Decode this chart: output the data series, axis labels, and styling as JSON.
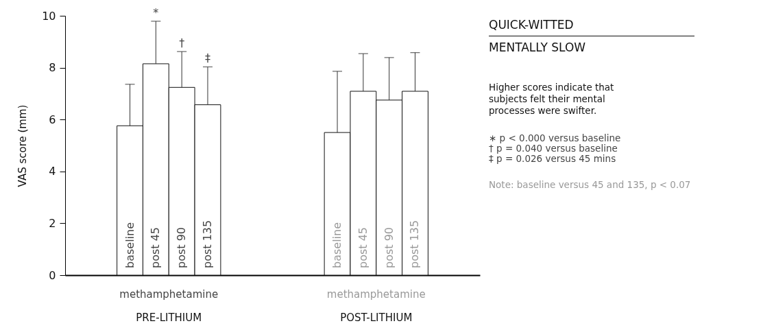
{
  "chart_data": {
    "type": "bar",
    "ylabel": "VAS score  (mm)",
    "categories": [
      "baseline",
      "post 45",
      "post 90",
      "post 135",
      "baseline",
      "post 45",
      "post 90",
      "post 135"
    ],
    "values": [
      5.76,
      8.15,
      7.24,
      6.57,
      5.5,
      7.09,
      6.75,
      7.09
    ],
    "errors": [
      [
        5.76,
        7.36
      ],
      [
        8.15,
        9.79
      ],
      [
        7.24,
        8.62
      ],
      [
        6.57,
        8.03
      ],
      [
        5.5,
        7.86
      ],
      [
        7.09,
        8.54
      ],
      [
        6.75,
        8.39
      ],
      [
        7.09,
        8.58
      ]
    ],
    "color": "#ffffff",
    "ylim": [
      0,
      10
    ],
    "yticks": [
      0,
      2,
      4,
      6,
      8,
      10
    ],
    "grid": false,
    "annotations": [
      {
        "text": "*",
        "x": "post 45",
        "y": 9.79
      },
      {
        "text": "†",
        "x": "post 90",
        "y": 8.62
      },
      {
        "text": "‡",
        "x": "post 135",
        "y": 8.03
      },
      "methamphetamine",
      "methamphetamine",
      "PRE-LITHIUM",
      "POST-LITHIUM",
      "QUICK-WITTED",
      "MENTALLY SLOW",
      "Higher scores indicate that subjects felt their mental processes were swifter.",
      "∗ p < 0.000 versus baseline",
      "† p = 0.040 versus baseline",
      "‡ p = 0.026 versus 45 mins",
      "Note: baseline versus 45 and 135, p < 0.07"
    ]
  }
}
